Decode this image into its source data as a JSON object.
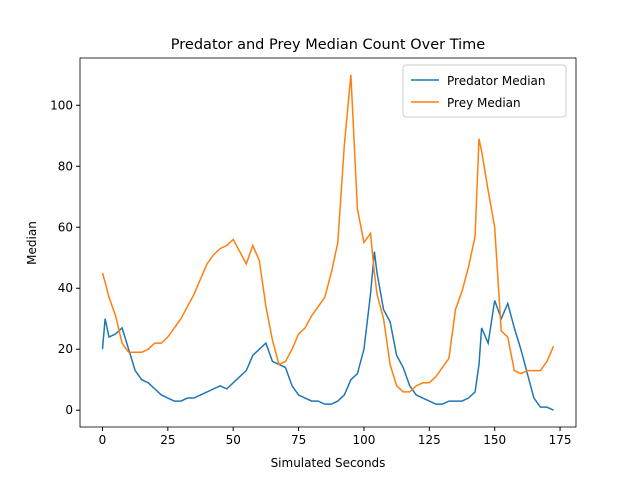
{
  "chart_data": {
    "type": "line",
    "title": "Predator and Prey Median Count Over Time",
    "x_label": "Simulated Seconds",
    "y_label": "Median",
    "x": [
      0,
      1,
      2.5,
      5,
      7.5,
      10,
      12.5,
      15,
      17.5,
      20,
      22.5,
      25,
      27.5,
      30,
      32.5,
      35,
      37.5,
      40,
      42.5,
      45,
      47.5,
      50,
      52.5,
      55,
      57.5,
      60,
      62.5,
      65,
      67.5,
      70,
      72.5,
      75,
      77.5,
      80,
      82.5,
      85,
      87.5,
      90,
      92.5,
      95,
      97.5,
      100,
      102.5,
      104,
      105,
      107.5,
      110,
      112.5,
      115,
      117.5,
      120,
      122.5,
      125,
      127.5,
      130,
      132.5,
      135,
      137.5,
      140,
      142.5,
      144,
      145,
      147.5,
      150,
      152.5,
      155,
      157.5,
      160,
      162.5,
      165,
      167.5,
      170,
      172.5
    ],
    "series": [
      {
        "name": "Predator Median",
        "color": "#1f77b4",
        "values": [
          20,
          30,
          24,
          25,
          27,
          20,
          13,
          10,
          9,
          7,
          5,
          4,
          3,
          3,
          4,
          4,
          5,
          6,
          7,
          8,
          7,
          9,
          11,
          13,
          18,
          20,
          22,
          16,
          15,
          14,
          8,
          5,
          4,
          3,
          3,
          2,
          2,
          3,
          5,
          10,
          12,
          20,
          38,
          52,
          45,
          33,
          29,
          18,
          14,
          8,
          5,
          4,
          3,
          2,
          2,
          3,
          3,
          3,
          4,
          6,
          15,
          27,
          22,
          36,
          30,
          35,
          27,
          20,
          12,
          4,
          1,
          1,
          0
        ]
      },
      {
        "name": "Prey Median",
        "color": "#ff7f0e",
        "values": [
          45,
          42,
          37,
          31,
          22,
          19,
          19,
          19,
          20,
          22,
          22,
          24,
          27,
          30,
          34,
          38,
          43,
          48,
          51,
          53,
          54,
          56,
          52,
          48,
          54,
          49,
          34,
          23,
          15,
          16,
          20,
          25,
          27,
          31,
          34,
          37,
          45,
          55,
          87,
          110,
          66,
          55,
          58,
          45,
          38,
          30,
          15,
          8,
          6,
          6,
          8,
          9,
          9,
          11,
          14,
          17,
          33,
          39,
          47,
          57,
          89,
          85,
          72,
          60,
          26,
          24,
          13,
          12,
          13,
          13,
          13,
          16,
          21
        ]
      }
    ],
    "xlim": [
      -8.6,
      181.1
    ],
    "ylim": [
      -5.5,
      115.5
    ],
    "xticks": [
      0,
      25,
      50,
      75,
      100,
      125,
      150,
      175
    ],
    "yticks": [
      0,
      20,
      40,
      60,
      80,
      100
    ],
    "legend": "upper right",
    "grid": false
  }
}
